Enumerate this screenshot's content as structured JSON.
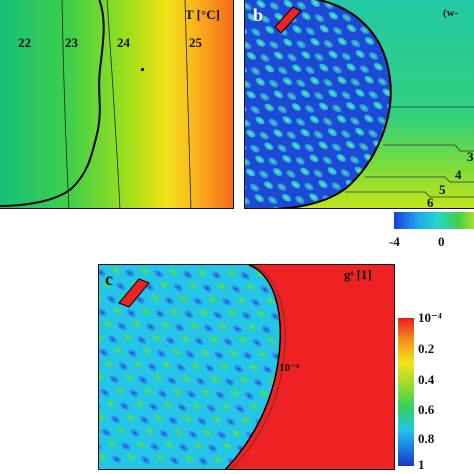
{
  "panel_a": {
    "unit_label": "T [°C]",
    "isotherm_labels": [
      "22",
      "23",
      "24",
      "25"
    ]
  },
  "panel_b": {
    "letter": "b",
    "unit_label": "(w-",
    "contour_labels": [
      "3",
      "4",
      "5",
      "6"
    ],
    "colorbar_ticks": [
      "-4",
      "0"
    ]
  },
  "panel_c": {
    "letter": "c",
    "unit_label": "gˢ [1]",
    "contour_label": "10⁻⁴",
    "colorbar_ticks": [
      "10⁻⁴",
      "0.2",
      "0.4",
      "0.6",
      "0.8",
      "1"
    ]
  },
  "colors": {
    "red": "#ee2222",
    "blue": "#1a4fd8",
    "cyan": "#22c3e6",
    "green_field": "#2fcf5a"
  }
}
